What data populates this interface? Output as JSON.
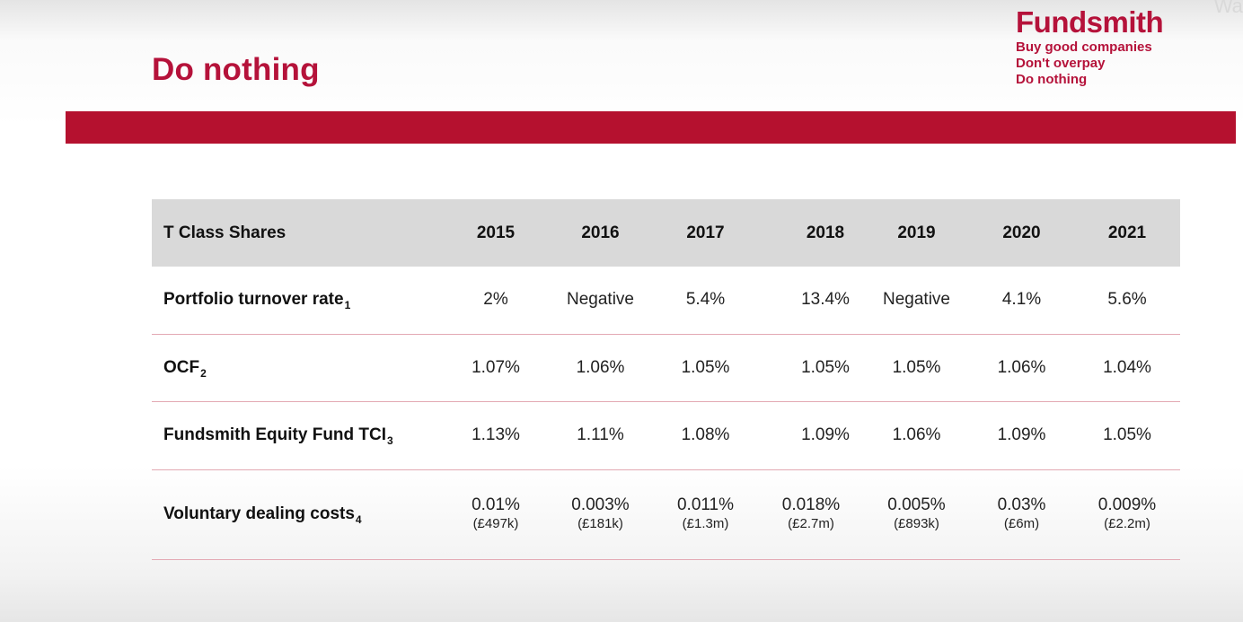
{
  "watermark": "Wat",
  "slide": {
    "title": "Do nothing"
  },
  "brand": {
    "name": "Fundsmith",
    "taglines": [
      "Buy good companies",
      "Don't overpay",
      "Do nothing"
    ]
  },
  "colors": {
    "accent": "#b5123a",
    "bar": "#b5112f",
    "header_bg": "#d9d9d9",
    "row_divider": "#e3a9b3"
  },
  "table": {
    "header": "T Class Shares",
    "years": [
      "2015",
      "2016",
      "2017",
      "2018",
      "2019",
      "2020",
      "2021"
    ],
    "rows": [
      {
        "label": "Portfolio turnover rate",
        "sub": "1",
        "values": [
          "2%",
          "Negative",
          "5.4%",
          "13.4%",
          "Negative",
          "4.1%",
          "5.6%"
        ]
      },
      {
        "label": "OCF",
        "sub": "2",
        "values": [
          "1.07%",
          "1.06%",
          "1.05%",
          "1.05%",
          "1.05%",
          "1.06%",
          "1.04%"
        ]
      },
      {
        "label": "Fundsmith Equity Fund TCI",
        "sub": "3",
        "values": [
          "1.13%",
          "1.11%",
          "1.08%",
          "1.09%",
          "1.06%",
          "1.09%",
          "1.05%"
        ]
      },
      {
        "label": "Voluntary dealing costs",
        "sub": "4",
        "values": [
          "0.01%",
          "0.003%",
          "0.011%",
          "0.018%",
          "0.005%",
          "0.03%",
          "0.009%"
        ],
        "amounts": [
          "(£497k)",
          "(£181k)",
          "(£1.3m)",
          "(£2.7m)",
          "(£893k)",
          "(£6m)",
          "(£2.2m)"
        ]
      }
    ]
  }
}
